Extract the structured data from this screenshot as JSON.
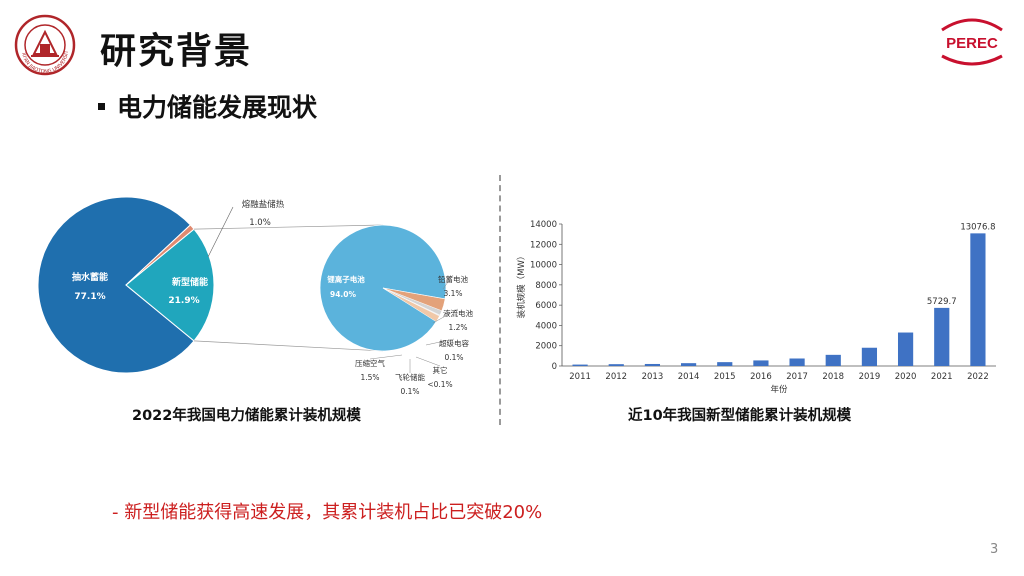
{
  "header": {
    "title": "研究背景",
    "subtitle": "电力储能发展现状",
    "brand_logo_text": "PEREC",
    "university_seal_text": "XI'AN JIAOTONG UNIVERSITY",
    "accent_color": "#c8102e"
  },
  "left_figure": {
    "caption": "2022年我国电力储能累计装机规模",
    "main_pie": {
      "slices": [
        {
          "name": "抽水蓄能",
          "value": "77.1%",
          "percent": 77.1,
          "color": "#1f6fae"
        },
        {
          "name": "新型储能",
          "value": "21.9%",
          "percent": 21.9,
          "color": "#20a6bd"
        },
        {
          "name": "熔融盐储热",
          "value": "1.0%",
          "percent": 1.0,
          "color": "#e08a70"
        }
      ]
    },
    "sub_pie": {
      "slices": [
        {
          "name": "锂离子电池",
          "value": "94.0%",
          "percent": 94.0,
          "color": "#5bb3dc"
        },
        {
          "name": "铅蓄电池",
          "value": "3.1%",
          "percent": 3.1,
          "color": "#e3a27a"
        },
        {
          "name": "液流电池",
          "value": "1.2%",
          "percent": 1.2,
          "color": "#d4d4d4"
        },
        {
          "name": "超级电容",
          "value": "0.1%",
          "percent": 0.1,
          "color": "#9a9a9a"
        },
        {
          "name": "其它",
          "value": "<0.1%",
          "percent": 0.05,
          "color": "#b0b0b0"
        },
        {
          "name": "飞轮储能",
          "value": "0.1%",
          "percent": 0.1,
          "color": "#7f7f7f"
        },
        {
          "name": "压缩空气",
          "value": "1.5%",
          "percent": 1.5,
          "color": "#f0c8a8"
        }
      ]
    }
  },
  "right_figure": {
    "caption": "近10年我国新型储能累计装机规模",
    "chart_data": {
      "type": "bar",
      "categories": [
        "2011",
        "2012",
        "2013",
        "2014",
        "2015",
        "2016",
        "2017",
        "2018",
        "2019",
        "2020",
        "2021",
        "2022"
      ],
      "values": [
        140,
        180,
        200,
        280,
        380,
        550,
        740,
        1100,
        1800,
        3300,
        5729.7,
        13076.8
      ],
      "data_labels": {
        "2021": "5729.7",
        "2022": "13076.8"
      },
      "xlabel": "年份",
      "ylabel": "装机规模（MW）",
      "ylim": [
        0,
        14000
      ],
      "yticks": [
        0,
        2000,
        4000,
        6000,
        8000,
        10000,
        12000,
        14000
      ],
      "grid": false,
      "bar_color": "#3f72c4"
    }
  },
  "conclusion": "- 新型储能获得高速发展，其累计装机占比已突破20%",
  "page_number": "3"
}
